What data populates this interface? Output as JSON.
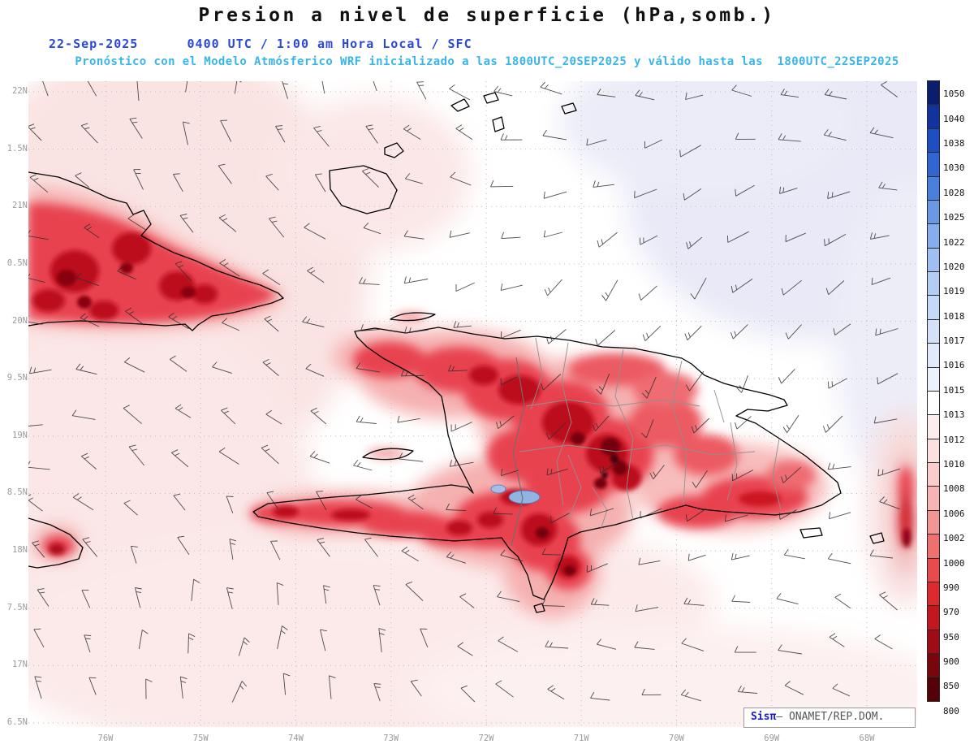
{
  "header": {
    "title": "Presion a nivel de superficie (hPa,somb.)",
    "datetime_line": "22-Sep-2025      0400 UTC / 1:00 am Hora Local / SFC",
    "model_line": "Pronóstico con el Modelo Atmósferico WRF inicializado a las 1800UTC_20SEP2025 y válido hasta las  1800UTC_22SEP2025"
  },
  "axes": {
    "lat_labels": [
      "22N",
      "1.5N",
      "21N",
      "0.5N",
      "20N",
      "9.5N",
      "19N",
      "8.5N",
      "18N",
      "7.5N",
      "17N",
      "6.5N"
    ],
    "lon_labels": [
      "76W",
      "75W",
      "74W",
      "73W",
      "72W",
      "71W",
      "70W",
      "69W",
      "68W"
    ]
  },
  "colorbar": {
    "unit": "hPa",
    "stops": [
      {
        "value": "1050",
        "color": "#0b1e6e"
      },
      {
        "value": "1040",
        "color": "#12339e"
      },
      {
        "value": "1038",
        "color": "#1d4ec4"
      },
      {
        "value": "1030",
        "color": "#3166d2"
      },
      {
        "value": "1028",
        "color": "#4b7fdd"
      },
      {
        "value": "1025",
        "color": "#6a98e5"
      },
      {
        "value": "1022",
        "color": "#86aded"
      },
      {
        "value": "1020",
        "color": "#9fbff2"
      },
      {
        "value": "1019",
        "color": "#b3cdf5"
      },
      {
        "value": "1018",
        "color": "#c4d8f7"
      },
      {
        "value": "1017",
        "color": "#d3e2f9"
      },
      {
        "value": "1016",
        "color": "#e0eafb"
      },
      {
        "value": "1015",
        "color": "#ecf2fc"
      },
      {
        "value": "1013",
        "color": "#ffffff"
      },
      {
        "value": "1012",
        "color": "#fdeeee"
      },
      {
        "value": "1010",
        "color": "#fce0e0"
      },
      {
        "value": "1008",
        "color": "#facccc"
      },
      {
        "value": "1006",
        "color": "#f8b4b4"
      },
      {
        "value": "1002",
        "color": "#f49595"
      },
      {
        "value": "1000",
        "color": "#ef7070"
      },
      {
        "value": "990",
        "color": "#e84b4b"
      },
      {
        "value": "970",
        "color": "#de2a2e"
      },
      {
        "value": "950",
        "color": "#c4161f"
      },
      {
        "value": "900",
        "color": "#9e0d15"
      },
      {
        "value": "850",
        "color": "#7a060d"
      },
      {
        "value": "800",
        "color": "#540208"
      }
    ]
  },
  "attribution": {
    "brand": "Sisπ",
    "org": "– ONAMET/REP.DOM."
  },
  "colors": {
    "subtitle_blue": "#2b48d8",
    "subtitle_cyan": "#38b5ea",
    "coastline": "#000000"
  }
}
